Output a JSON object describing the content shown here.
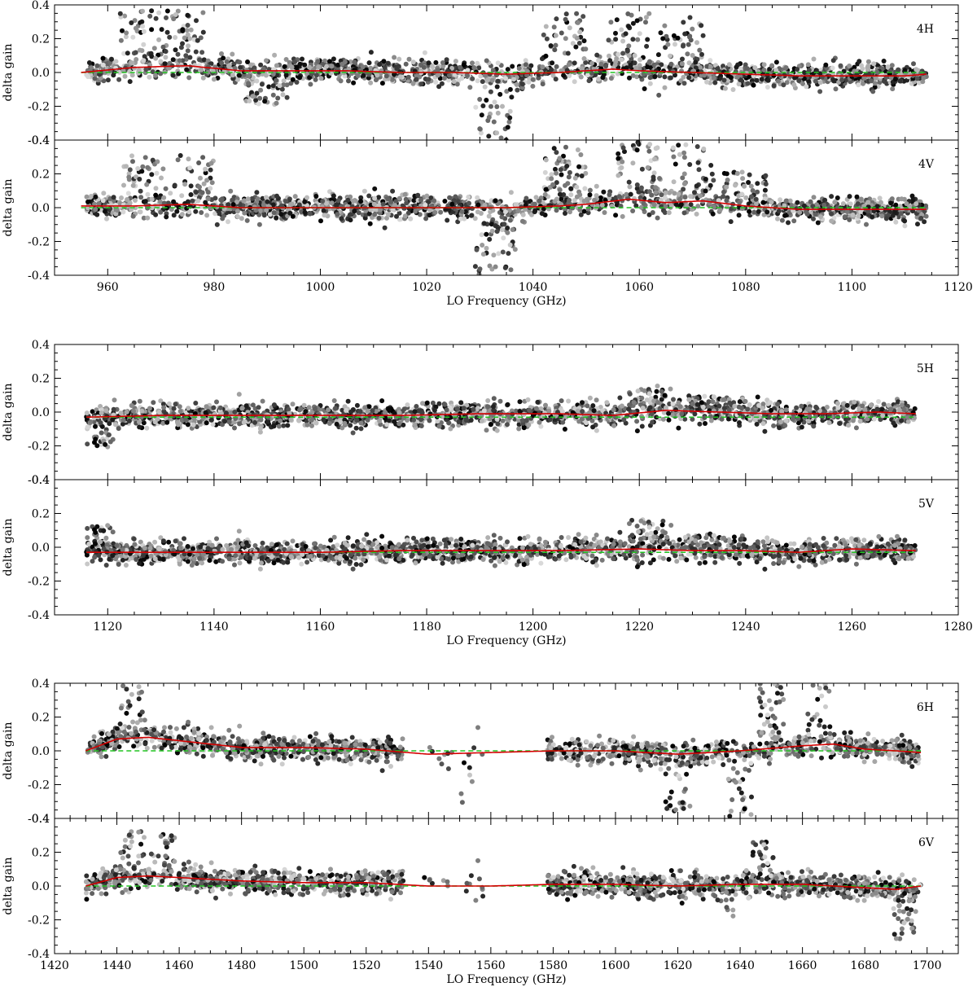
{
  "figure": {
    "groups": [
      {
        "xlabel": "LO Frequency (GHz)",
        "xlim": [
          950,
          1120
        ],
        "xticks": [
          "960",
          "980",
          "1000",
          "1020",
          "1040",
          "1060",
          "1080",
          "1100",
          "1120"
        ],
        "panels": [
          {
            "label": "4H",
            "ylabel": "delta gain"
          },
          {
            "label": "4V",
            "ylabel": "delta gain"
          }
        ]
      },
      {
        "xlabel": "LO Frequency (GHz)",
        "xlim": [
          1110,
          1280
        ],
        "xticks": [
          "1120",
          "1140",
          "1160",
          "1180",
          "1200",
          "1220",
          "1240",
          "1260",
          "1280"
        ],
        "panels": [
          {
            "label": "5H",
            "ylabel": "delta gain"
          },
          {
            "label": "5V",
            "ylabel": "delta gain"
          }
        ]
      },
      {
        "xlabel": "LO Frequency (GHz)",
        "xlim": [
          1420,
          1710
        ],
        "xticks": [
          "1420",
          "1440",
          "1460",
          "1480",
          "1500",
          "1520",
          "1540",
          "1560",
          "1580",
          "1600",
          "1620",
          "1640",
          "1660",
          "1680",
          "1700"
        ],
        "panels": [
          {
            "label": "6H",
            "ylabel": "delta gain"
          },
          {
            "label": "6V",
            "ylabel": "delta gain"
          }
        ]
      }
    ],
    "yticks": [
      "0.4",
      "0.2",
      "0.0",
      "-0.2",
      "-0.4"
    ]
  },
  "chart_data": [
    {
      "type": "scatter",
      "panel": "4H",
      "xlabel": "LO Frequency (GHz)",
      "ylabel": "delta gain",
      "xlim": [
        950,
        1120
      ],
      "ylim": [
        -0.4,
        0.4
      ],
      "data_range": [
        956,
        1114
      ],
      "grid": false,
      "points_description": "dense grey-scale scatter of per-channel delta gain vs LO frequency",
      "red_fit": {
        "x": [
          955,
          965,
          975,
          985,
          995,
          1005,
          1015,
          1025,
          1035,
          1045,
          1055,
          1060,
          1070,
          1080,
          1090,
          1100,
          1110,
          1114
        ],
        "y": [
          0.0,
          0.03,
          0.04,
          0.01,
          0.01,
          0.01,
          0.0,
          0.0,
          -0.01,
          0.0,
          0.02,
          0.01,
          0.0,
          -0.01,
          -0.02,
          -0.02,
          -0.02,
          -0.01
        ]
      },
      "green_fit": {
        "x": [
          955,
          1114
        ],
        "y": [
          0.0,
          0.0
        ]
      }
    },
    {
      "type": "scatter",
      "panel": "4V",
      "xlabel": "LO Frequency (GHz)",
      "ylabel": "delta gain",
      "xlim": [
        950,
        1120
      ],
      "ylim": [
        -0.4,
        0.4
      ],
      "data_range": [
        956,
        1114
      ],
      "grid": false,
      "red_fit": {
        "x": [
          955,
          965,
          975,
          985,
          995,
          1005,
          1015,
          1025,
          1035,
          1045,
          1050,
          1058,
          1065,
          1072,
          1080,
          1090,
          1100,
          1114
        ],
        "y": [
          0.01,
          0.01,
          0.02,
          0.0,
          0.0,
          0.0,
          0.0,
          0.0,
          0.0,
          0.01,
          0.02,
          0.05,
          0.03,
          0.04,
          0.01,
          -0.01,
          -0.01,
          -0.01
        ]
      },
      "green_fit": {
        "x": [
          955,
          1114
        ],
        "y": [
          0.0,
          0.0
        ]
      }
    },
    {
      "type": "scatter",
      "panel": "5H",
      "xlabel": "LO Frequency (GHz)",
      "ylabel": "delta gain",
      "xlim": [
        1110,
        1280
      ],
      "ylim": [
        -0.4,
        0.4
      ],
      "data_range": [
        1116,
        1272
      ],
      "grid": false,
      "red_fit": {
        "x": [
          1116,
          1130,
          1145,
          1160,
          1175,
          1190,
          1205,
          1215,
          1225,
          1235,
          1245,
          1255,
          1265,
          1272
        ],
        "y": [
          -0.03,
          -0.02,
          -0.02,
          -0.02,
          -0.02,
          -0.01,
          -0.01,
          -0.02,
          0.01,
          0.0,
          -0.01,
          -0.01,
          0.0,
          -0.01
        ]
      },
      "green_fit": {
        "x": [
          1116,
          1272
        ],
        "y": [
          -0.03,
          -0.03
        ]
      }
    },
    {
      "type": "scatter",
      "panel": "5V",
      "xlabel": "LO Frequency (GHz)",
      "ylabel": "delta gain",
      "xlim": [
        1110,
        1280
      ],
      "ylim": [
        -0.4,
        0.4
      ],
      "data_range": [
        1116,
        1272
      ],
      "grid": false,
      "red_fit": {
        "x": [
          1116,
          1130,
          1145,
          1160,
          1175,
          1190,
          1205,
          1220,
          1230,
          1240,
          1250,
          1260,
          1272
        ],
        "y": [
          -0.03,
          -0.03,
          -0.03,
          -0.03,
          -0.02,
          -0.02,
          -0.02,
          -0.01,
          -0.02,
          -0.02,
          -0.03,
          -0.01,
          -0.02
        ]
      },
      "green_fit": {
        "x": [
          1116,
          1272
        ],
        "y": [
          -0.03,
          -0.03
        ]
      }
    },
    {
      "type": "scatter",
      "panel": "6H",
      "xlabel": "LO Frequency (GHz)",
      "ylabel": "delta gain",
      "xlim": [
        1420,
        1710
      ],
      "ylim": [
        -0.4,
        0.4
      ],
      "data_range": [
        1430,
        1698
      ],
      "data_gap": [
        1560,
        1578
      ],
      "grid": false,
      "red_fit": {
        "x": [
          1430,
          1440,
          1450,
          1460,
          1480,
          1500,
          1520,
          1540,
          1560,
          1580,
          1600,
          1620,
          1640,
          1660,
          1670,
          1680,
          1690,
          1698
        ],
        "y": [
          0.0,
          0.07,
          0.08,
          0.06,
          0.02,
          0.02,
          0.01,
          -0.02,
          -0.01,
          0.0,
          0.0,
          -0.02,
          0.0,
          0.03,
          0.04,
          0.01,
          0.0,
          -0.01
        ]
      },
      "green_fit": {
        "x": [
          1430,
          1698
        ],
        "y": [
          0.0,
          0.0
        ]
      }
    },
    {
      "type": "scatter",
      "panel": "6V",
      "xlabel": "LO Frequency (GHz)",
      "ylabel": "delta gain",
      "xlim": [
        1420,
        1710
      ],
      "ylim": [
        -0.4,
        0.4
      ],
      "data_range": [
        1430,
        1698
      ],
      "data_gap": [
        1560,
        1578
      ],
      "grid": false,
      "red_fit": {
        "x": [
          1430,
          1440,
          1450,
          1460,
          1480,
          1500,
          1520,
          1540,
          1560,
          1580,
          1600,
          1620,
          1640,
          1660,
          1680,
          1690,
          1698
        ],
        "y": [
          0.0,
          0.05,
          0.06,
          0.05,
          0.03,
          0.02,
          0.02,
          0.0,
          0.0,
          0.01,
          0.01,
          0.0,
          0.01,
          0.01,
          -0.01,
          -0.02,
          0.0
        ]
      },
      "green_fit": {
        "x": [
          1430,
          1698
        ],
        "y": [
          0.0,
          0.0
        ]
      }
    }
  ]
}
